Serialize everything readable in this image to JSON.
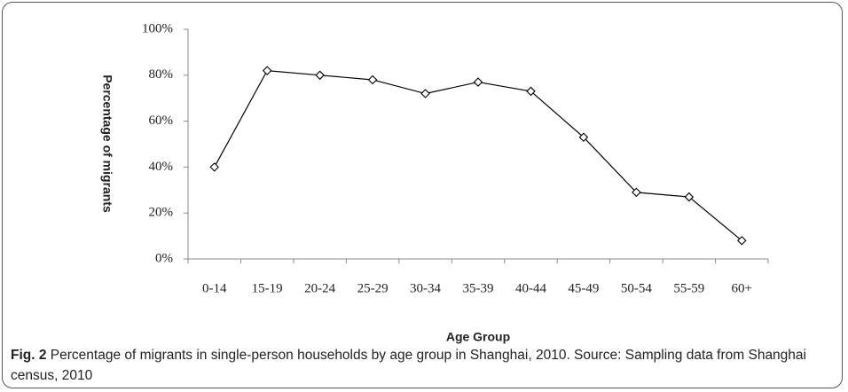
{
  "chart_data": {
    "type": "line",
    "categories": [
      "0-14",
      "15-19",
      "20-24",
      "25-29",
      "30-34",
      "35-39",
      "40-44",
      "45-49",
      "50-54",
      "55-59",
      "60+"
    ],
    "values": [
      40,
      82,
      80,
      78,
      72,
      77,
      73,
      53,
      29,
      27,
      8
    ],
    "color": "#000000",
    "ylim": [
      0,
      100
    ],
    "yticks": [
      {
        "value": 0,
        "label": "0%"
      },
      {
        "value": 20,
        "label": "20%"
      },
      {
        "value": 40,
        "label": "40%"
      },
      {
        "value": 60,
        "label": "60%"
      },
      {
        "value": 80,
        "label": "80%"
      },
      {
        "value": 100,
        "label": "100%"
      }
    ],
    "xlabel": "Age Group",
    "ylabel": "Percentage of migrants",
    "grid": false
  },
  "caption": {
    "label": "Fig. 2",
    "text": "Percentage of migrants in single-person households by age group in Shanghai, 2010. Source: Sampling data from Shanghai census, 2010"
  }
}
